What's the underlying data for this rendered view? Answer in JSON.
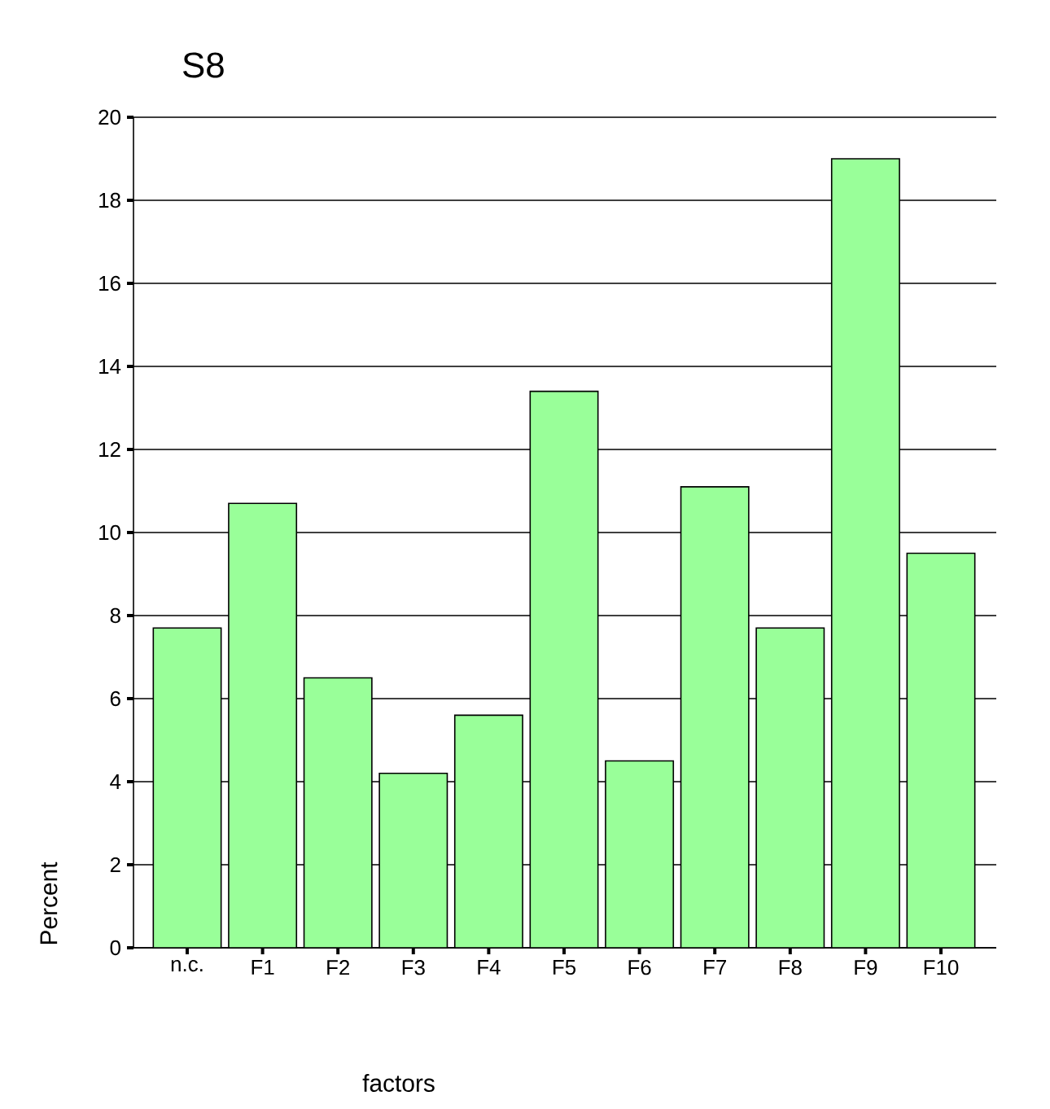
{
  "chart_data": {
    "type": "bar",
    "title": "S8",
    "xlabel": "factors",
    "ylabel": "Percent",
    "categories": [
      "n.c.",
      "F1",
      "F2",
      "F3",
      "F4",
      "F5",
      "F6",
      "F7",
      "F8",
      "F9",
      "F10"
    ],
    "values": [
      7.7,
      10.7,
      6.5,
      4.2,
      5.6,
      13.4,
      4.5,
      11.1,
      7.7,
      19.0,
      9.5
    ],
    "color": "#99ff99",
    "ylim": [
      0,
      20
    ],
    "yticks": [
      0,
      2,
      4,
      6,
      8,
      10,
      12,
      14,
      16,
      18,
      20
    ],
    "grid": "y"
  }
}
